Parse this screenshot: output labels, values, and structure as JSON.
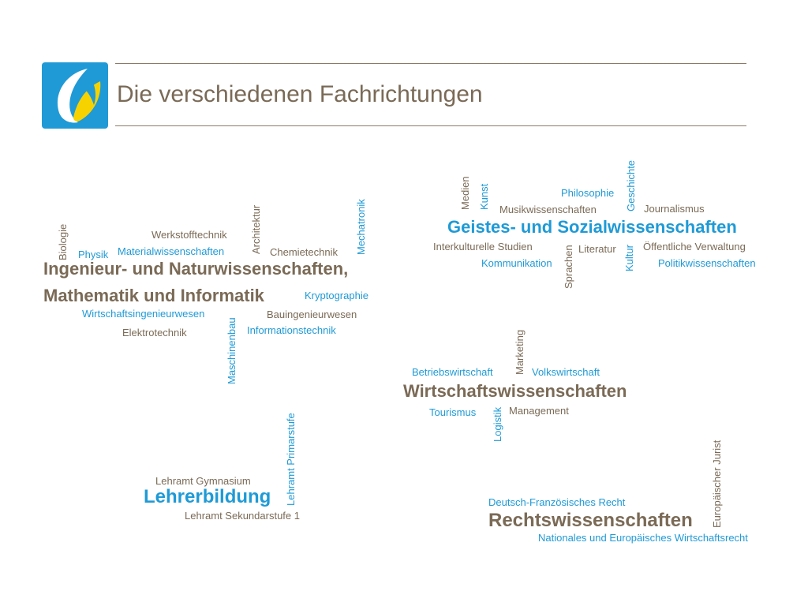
{
  "slide": {
    "title": "Die verschiedenen Fachrichtungen"
  },
  "cloud": {
    "ingenieur": {
      "heading_line1": "Ingenieur- und Naturwissenschaften,",
      "heading_line2": "Mathematik und Informatik",
      "terms": {
        "biologie": "Biologie",
        "physik": "Physik",
        "werkstofftechnik": "Werkstofftechnik",
        "materialwissenschaften": "Materialwissenschaften",
        "architektur": "Architektur",
        "chemietechnik": "Chemietechnik",
        "mechatronik": "Mechatronik",
        "kryptographie": "Kryptographie",
        "wirtschaftsingenieurwesen": "Wirtschaftsingenieurwesen",
        "bauingenieurwesen": "Bauingenieurwesen",
        "elektrotechnik": "Elektrotechnik",
        "informationstechnik": "Informationstechnik",
        "maschinenbau": "Maschinenbau"
      }
    },
    "geistes": {
      "heading": "Geistes- und Sozialwissenschaften",
      "terms": {
        "medien": "Medien",
        "kunst": "Kunst",
        "philosophie": "Philosophie",
        "geschichte": "Geschichte",
        "musikwissenschaften": "Musikwissenschaften",
        "journalismus": "Journalismus",
        "interkulturelle_studien": "Interkulturelle Studien",
        "literatur": "Literatur",
        "oeffentliche_verwaltung": "Öffentliche Verwaltung",
        "kommunikation": "Kommunikation",
        "sprachen": "Sprachen",
        "kultur": "Kultur",
        "politikwissenschaften": "Politikwissenschaften"
      }
    },
    "wirtschaft": {
      "heading": "Wirtschaftswissenschaften",
      "terms": {
        "marketing": "Marketing",
        "betriebswirtschaft": "Betriebswirtschaft",
        "volkswirtschaft": "Volkswirtschaft",
        "tourismus": "Tourismus",
        "logistik": "Logistik",
        "management": "Management"
      }
    },
    "lehrer": {
      "heading": "Lehrerbildung",
      "terms": {
        "lehramt_primarstufe": "Lehramt Primarstufe",
        "lehramt_gymnasium": "Lehramt Gymnasium",
        "lehramt_sekundarstufe": "Lehramt Sekundarstufe 1"
      }
    },
    "recht": {
      "heading": "Rechtswissenschaften",
      "terms": {
        "deutsch_franzoesisches_recht": "Deutsch-Französisches Recht",
        "europaeischer_jurist": "Europäischer Jurist",
        "wirtschaftsrecht": "Nationales und Europäisches Wirtschaftsrecht"
      }
    }
  },
  "colors": {
    "brown": "#7a6a56",
    "blue": "#1f9ad6",
    "logo_yellow": "#f6d200"
  }
}
